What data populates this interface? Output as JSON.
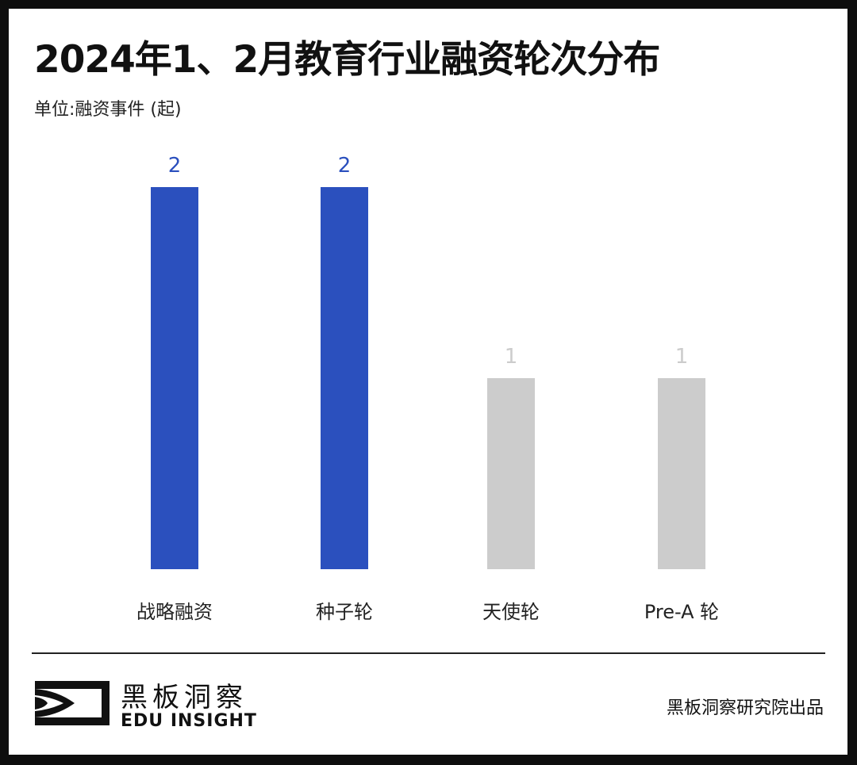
{
  "title": "2024年1、2月教育行业融资轮次分布",
  "unit_label": "单位:融资事件 (起)",
  "chart_data": {
    "type": "bar",
    "categories": [
      "战略融资",
      "种子轮",
      "天使轮",
      "Pre-A 轮"
    ],
    "values": [
      2,
      2,
      1,
      1
    ],
    "bar_colors": [
      "#2b50be",
      "#2b50be",
      "#cccccc",
      "#cccccc"
    ],
    "label_colors": [
      "#2b50be",
      "#2b50be",
      "#cccccc",
      "#cccccc"
    ],
    "ylim": [
      0,
      2
    ],
    "grid": false
  },
  "footer": {
    "logo_cn": "黑板洞察",
    "logo_en": "EDU INSIGHT",
    "credit": "黑板洞察研究院出品"
  }
}
